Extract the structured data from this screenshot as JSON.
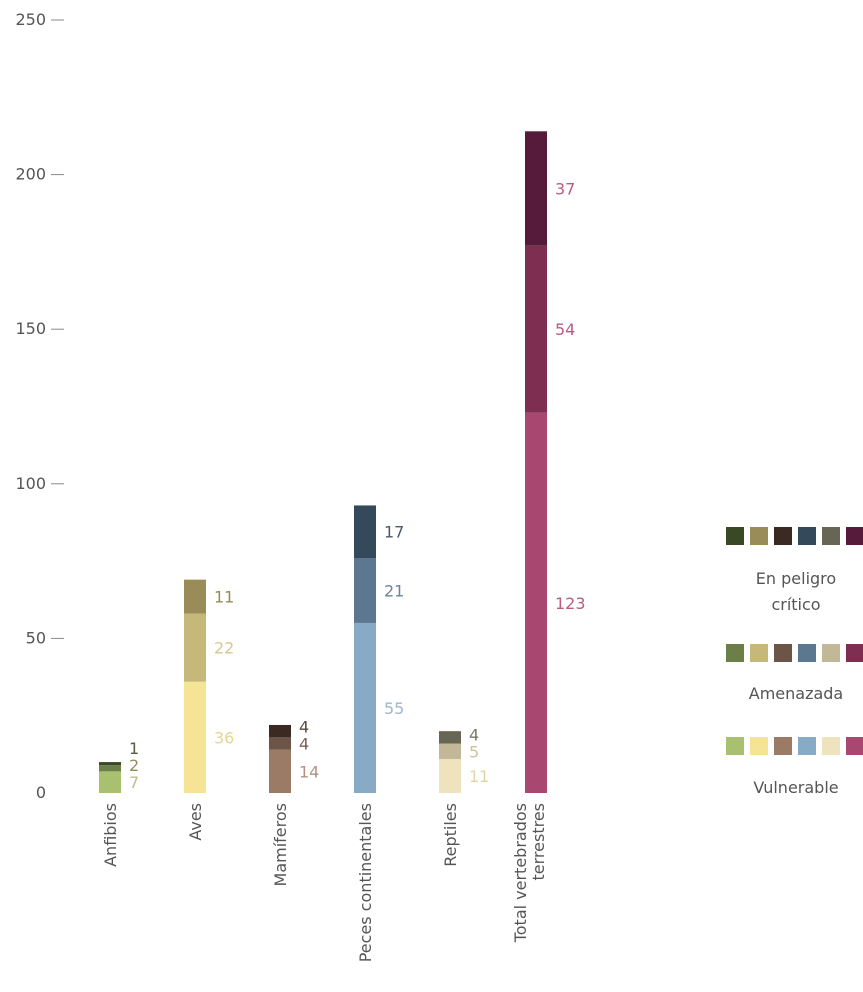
{
  "chart_data": {
    "type": "bar",
    "stacked": true,
    "orientation": "vertical",
    "categories": [
      "Anfibios",
      "Aves",
      "Mamíferos",
      "Peces continentales",
      "Reptiles",
      "Total vertebrados terrestres"
    ],
    "ylim": [
      0,
      250
    ],
    "yticks": [
      0,
      50,
      100,
      150,
      200,
      250
    ],
    "series": [
      {
        "name": "Vulnerable",
        "values": [
          7,
          36,
          14,
          55,
          11,
          123
        ],
        "colors": [
          "#a8c070",
          "#f6e496",
          "#9c7b66",
          "#87abc7",
          "#eee3bd",
          "#a84870"
        ],
        "label_colors": [
          "#b7c38c",
          "#e6d690",
          "#b39281",
          "#9db7cf",
          "#e2d6a6",
          "#b95c80"
        ]
      },
      {
        "name": "Amenazada",
        "values": [
          2,
          22,
          4,
          21,
          5,
          54
        ],
        "colors": [
          "#6d7f48",
          "#c6b878",
          "#6c5446",
          "#5c7890",
          "#c2b898",
          "#7e2e50"
        ],
        "label_colors": [
          "#8f8f5c",
          "#d6c88e",
          "#7b6151",
          "#6a849b",
          "#cfc39a",
          "#b95c80"
        ]
      },
      {
        "name": "En peligro crítico",
        "values": [
          1,
          11,
          4,
          17,
          4,
          37
        ],
        "colors": [
          "#3a4826",
          "#9a8c58",
          "#3a2a22",
          "#34495a",
          "#676553",
          "#561a3a"
        ],
        "label_colors": [
          "#5a5a40",
          "#9a8a50",
          "#5a4a40",
          "#4a5a6a",
          "#7a7868",
          "#b95c80"
        ]
      }
    ],
    "legend": [
      {
        "label": "En peligro crítico",
        "label_lines": [
          "En peligro",
          "crítico"
        ],
        "swatches": [
          "#3a4826",
          "#9a8c58",
          "#3a2a22",
          "#34495a",
          "#676553",
          "#561a3a"
        ]
      },
      {
        "label": "Amenazada",
        "label_lines": [
          "Amenazada"
        ],
        "swatches": [
          "#6d7f48",
          "#c6b878",
          "#6c5446",
          "#5c7890",
          "#c2b898",
          "#7e2e50"
        ]
      },
      {
        "label": "Vulnerable",
        "label_lines": [
          "Vulnerable"
        ],
        "swatches": [
          "#a8c070",
          "#f6e496",
          "#9c7b66",
          "#87abc7",
          "#eee3bd",
          "#a84870"
        ]
      }
    ],
    "legend_position": "right",
    "title": "",
    "xlabel": "",
    "ylabel": "",
    "grid": false
  }
}
